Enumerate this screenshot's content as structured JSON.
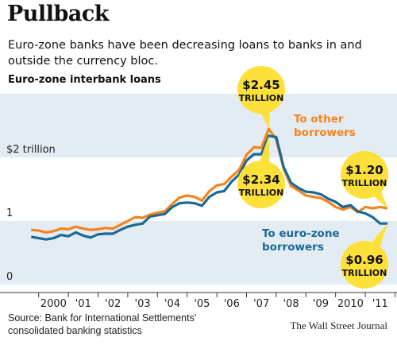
{
  "header": {
    "title": "Pullback",
    "subtitle": "Euro-zone banks have been decreasing loans to banks in and outside the currency bloc.",
    "chart_label": "Euro-zone interbank loans"
  },
  "footer": {
    "source": "Source: Bank for International Settlements' consolidated banking statistics",
    "credit": "The Wall Street Journal"
  },
  "colors": {
    "other_borrowers": "#f5841f",
    "euro_zone_borrowers": "#1a6a94",
    "band": "#e3ecf3",
    "bubble": "#fde03a"
  },
  "chart_data": {
    "type": "line",
    "title": "Euro-zone interbank loans",
    "ylim": [
      0,
      3
    ],
    "y_ticks": [
      {
        "value": 2,
        "label": "$2 trillion"
      },
      {
        "value": 1,
        "label": "1"
      },
      {
        "value": 0,
        "label": "0"
      }
    ],
    "x_ticks": [
      "2000",
      "'01",
      "'02",
      "'03",
      "'04",
      "'05",
      "'06",
      "'07",
      "'08",
      "'09",
      "2010",
      "'11"
    ],
    "xlim": [
      1999.5,
      2011.8
    ],
    "series": [
      {
        "name": "To other borrowers",
        "label_lines": [
          "To other",
          "borrowers"
        ],
        "points": [
          [
            1999.75,
            0.86
          ],
          [
            2000.0,
            0.85
          ],
          [
            2000.25,
            0.82
          ],
          [
            2000.5,
            0.84
          ],
          [
            2000.75,
            0.88
          ],
          [
            2001.0,
            0.87
          ],
          [
            2001.25,
            0.91
          ],
          [
            2001.5,
            0.88
          ],
          [
            2001.75,
            0.86
          ],
          [
            2002.0,
            0.87
          ],
          [
            2002.25,
            0.89
          ],
          [
            2002.5,
            0.88
          ],
          [
            2002.75,
            0.94
          ],
          [
            2003.0,
            1.0
          ],
          [
            2003.25,
            1.06
          ],
          [
            2003.5,
            1.05
          ],
          [
            2003.75,
            1.1
          ],
          [
            2004.0,
            1.13
          ],
          [
            2004.25,
            1.15
          ],
          [
            2004.5,
            1.27
          ],
          [
            2004.75,
            1.37
          ],
          [
            2005.0,
            1.4
          ],
          [
            2005.25,
            1.38
          ],
          [
            2005.5,
            1.32
          ],
          [
            2005.75,
            1.47
          ],
          [
            2006.0,
            1.56
          ],
          [
            2006.25,
            1.58
          ],
          [
            2006.5,
            1.7
          ],
          [
            2006.75,
            1.8
          ],
          [
            2007.0,
            2.04
          ],
          [
            2007.25,
            2.16
          ],
          [
            2007.5,
            2.15
          ],
          [
            2007.75,
            2.45
          ],
          [
            2008.0,
            2.28
          ],
          [
            2008.25,
            1.82
          ],
          [
            2008.5,
            1.55
          ],
          [
            2008.75,
            1.48
          ],
          [
            2009.0,
            1.4
          ],
          [
            2009.25,
            1.38
          ],
          [
            2009.5,
            1.36
          ],
          [
            2009.75,
            1.3
          ],
          [
            2010.0,
            1.22
          ],
          [
            2010.25,
            1.18
          ],
          [
            2010.5,
            1.22
          ],
          [
            2010.75,
            1.14
          ],
          [
            2011.0,
            1.22
          ],
          [
            2011.25,
            1.2
          ],
          [
            2011.5,
            1.22
          ],
          [
            2011.75,
            1.2
          ]
        ]
      },
      {
        "name": "To euro-zone borrowers",
        "label_lines": [
          "To euro-zone",
          "borrowers"
        ],
        "points": [
          [
            1999.75,
            0.75
          ],
          [
            2000.0,
            0.73
          ],
          [
            2000.25,
            0.71
          ],
          [
            2000.5,
            0.73
          ],
          [
            2000.75,
            0.78
          ],
          [
            2001.0,
            0.76
          ],
          [
            2001.25,
            0.82
          ],
          [
            2001.5,
            0.77
          ],
          [
            2001.75,
            0.74
          ],
          [
            2002.0,
            0.79
          ],
          [
            2002.25,
            0.8
          ],
          [
            2002.5,
            0.8
          ],
          [
            2002.75,
            0.86
          ],
          [
            2003.0,
            0.91
          ],
          [
            2003.25,
            0.94
          ],
          [
            2003.5,
            0.96
          ],
          [
            2003.75,
            1.07
          ],
          [
            2004.0,
            1.09
          ],
          [
            2004.25,
            1.11
          ],
          [
            2004.5,
            1.22
          ],
          [
            2004.75,
            1.28
          ],
          [
            2005.0,
            1.29
          ],
          [
            2005.25,
            1.28
          ],
          [
            2005.5,
            1.24
          ],
          [
            2005.75,
            1.38
          ],
          [
            2006.0,
            1.45
          ],
          [
            2006.25,
            1.47
          ],
          [
            2006.5,
            1.62
          ],
          [
            2006.75,
            1.73
          ],
          [
            2007.0,
            1.95
          ],
          [
            2007.25,
            2.05
          ],
          [
            2007.5,
            2.05
          ],
          [
            2007.75,
            2.34
          ],
          [
            2008.0,
            2.32
          ],
          [
            2008.25,
            1.85
          ],
          [
            2008.5,
            1.6
          ],
          [
            2008.75,
            1.52
          ],
          [
            2009.0,
            1.46
          ],
          [
            2009.25,
            1.45
          ],
          [
            2009.5,
            1.42
          ],
          [
            2009.75,
            1.35
          ],
          [
            2010.0,
            1.3
          ],
          [
            2010.25,
            1.22
          ],
          [
            2010.5,
            1.25
          ],
          [
            2010.75,
            1.15
          ],
          [
            2011.0,
            1.12
          ],
          [
            2011.25,
            1.06
          ],
          [
            2011.5,
            0.96
          ],
          [
            2011.75,
            0.96
          ]
        ]
      }
    ],
    "annotations": [
      {
        "value_line": "$2.45",
        "unit_line": "TRILLION",
        "x": 2007.75,
        "y": 2.45
      },
      {
        "value_line": "$2.34",
        "unit_line": "TRILLION",
        "x": 2007.75,
        "y": 2.34
      },
      {
        "value_line": "$1.20",
        "unit_line": "TRILLION",
        "x": 2011.75,
        "y": 1.2
      },
      {
        "value_line": "$0.96",
        "unit_line": "TRILLION",
        "x": 2011.75,
        "y": 0.96
      }
    ]
  }
}
